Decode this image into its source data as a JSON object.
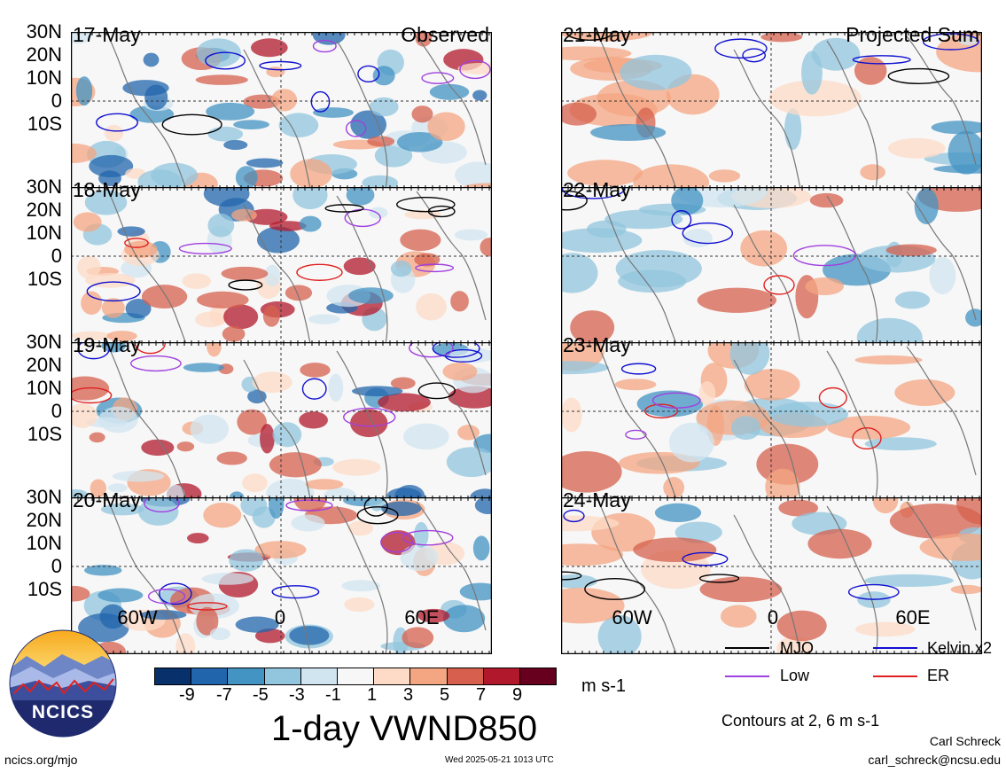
{
  "left_column": {
    "panels": [
      {
        "date": "17-May",
        "corner": "Observed"
      },
      {
        "date": "18-May",
        "corner": ""
      },
      {
        "date": "19-May",
        "corner": ""
      },
      {
        "date": "20-May",
        "corner": ""
      }
    ]
  },
  "right_column": {
    "panels": [
      {
        "date": "21-May",
        "corner": "Projected Sum"
      },
      {
        "date": "22-May",
        "corner": ""
      },
      {
        "date": "23-May",
        "corner": ""
      },
      {
        "date": "24-May",
        "corner": ""
      }
    ]
  },
  "y_axis_labels": [
    "30N",
    "20N",
    "10N",
    "0",
    "10S"
  ],
  "x_axis_labels": [
    "60W",
    "0",
    "60E"
  ],
  "colorbar": {
    "colors": [
      "#08306b",
      "#2166ac",
      "#4393c3",
      "#92c5de",
      "#d1e5f0",
      "#f7f7f7",
      "#fddbc7",
      "#f4a582",
      "#d6604d",
      "#b2182b",
      "#67001f"
    ],
    "ticks": [
      "-9",
      "-7",
      "-5",
      "-3",
      "-1",
      "1",
      "3",
      "5",
      "7",
      "9"
    ],
    "units": "m s-1"
  },
  "title": "1-day VWND850",
  "legend": {
    "items": [
      {
        "label": "MJO",
        "color": "#000000"
      },
      {
        "label": "Kelvin x2",
        "color": "#1010d0"
      },
      {
        "label": "Low",
        "color": "#a040e0"
      },
      {
        "label": "ER",
        "color": "#e02020"
      }
    ],
    "note": "Contours at 2, 6 m s-1"
  },
  "logo": {
    "text": "NCICS"
  },
  "footer": {
    "left": "ncics.org/mjo",
    "center": "Wed 2025-05-21 1013 UTC",
    "author": "Carl Schreck",
    "email": "carl_schreck@ncsu.edu"
  }
}
